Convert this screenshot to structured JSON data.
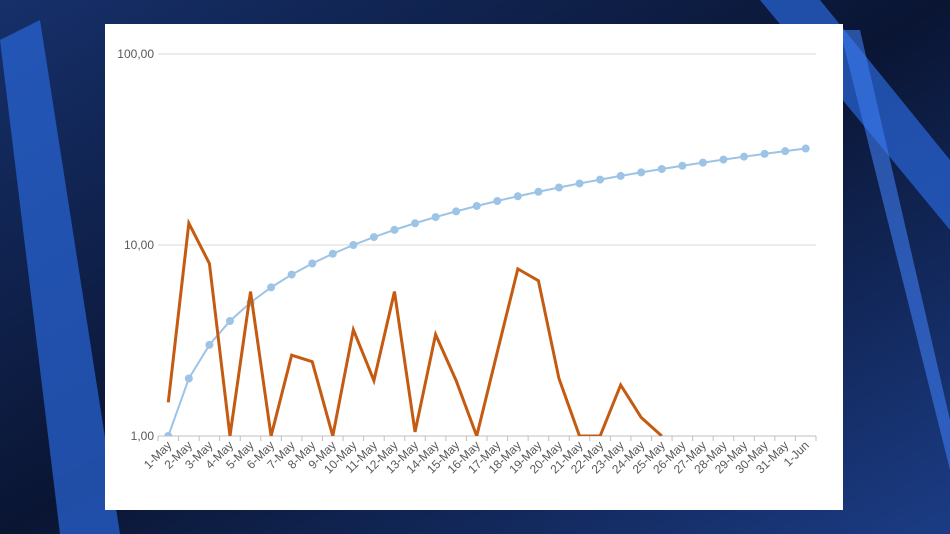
{
  "chart_data": {
    "type": "line",
    "categories": [
      "1-May",
      "2-May",
      "3-May",
      "4-May",
      "5-May",
      "6-May",
      "7-May",
      "8-May",
      "9-May",
      "10-May",
      "11-May",
      "12-May",
      "13-May",
      "14-May",
      "15-May",
      "16-May",
      "17-May",
      "18-May",
      "19-May",
      "20-May",
      "21-May",
      "22-May",
      "23-May",
      "24-May",
      "25-May",
      "26-May",
      "27-May",
      "28-May",
      "29-May",
      "30-May",
      "31-May",
      "1-Jun"
    ],
    "series": [
      {
        "color": "#9dc3e6",
        "markers": true,
        "values": [
          1,
          2,
          3,
          4,
          5,
          6,
          7,
          8,
          9,
          10,
          11,
          12,
          13,
          14,
          15,
          16,
          17,
          18,
          19,
          20,
          21,
          22,
          23,
          24,
          25,
          26,
          27,
          28,
          29,
          30,
          31,
          32
        ]
      },
      {
        "color": "#c55a11",
        "markers": false,
        "values": [
          1.5,
          13,
          8,
          1,
          5.7,
          1,
          2.65,
          2.45,
          1,
          3.6,
          1.95,
          5.7,
          1.05,
          3.4,
          1.95,
          1,
          2.75,
          7.5,
          6.5,
          2,
          1,
          1,
          1.85,
          1.25,
          1,
          null,
          null,
          null,
          null,
          null,
          null,
          null
        ]
      }
    ],
    "log_scale": true,
    "ylim": [
      1,
      100
    ],
    "yticks": [
      {
        "value": 1,
        "label": "1,00"
      },
      {
        "value": 10,
        "label": "10,00"
      },
      {
        "value": 100,
        "label": "100,00"
      }
    ],
    "grid": true
  }
}
